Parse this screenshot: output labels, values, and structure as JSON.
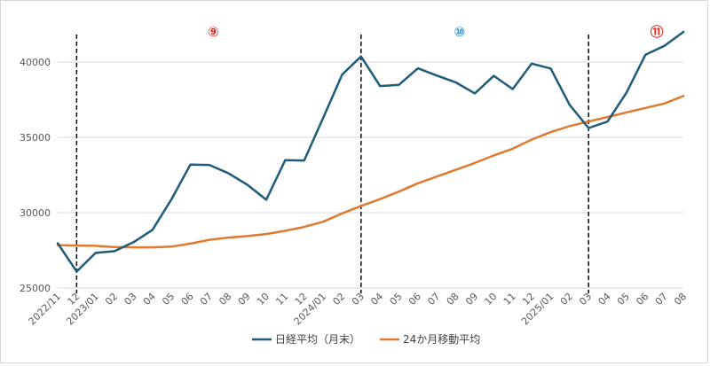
{
  "chart_data": {
    "type": "line",
    "title": "",
    "xlabel": "",
    "ylabel": "",
    "ylim": [
      25000,
      43000
    ],
    "yticks": [
      25000,
      30000,
      35000,
      40000
    ],
    "grid": "horizontal",
    "legend_position": "bottom",
    "categories": [
      "2022/11",
      "12",
      "2023/01",
      "02",
      "03",
      "04",
      "05",
      "06",
      "07",
      "08",
      "09",
      "10",
      "11",
      "12",
      "2024/01",
      "02",
      "03",
      "04",
      "05",
      "06",
      "07",
      "08",
      "09",
      "10",
      "11",
      "12",
      "2025/01",
      "02",
      "03",
      "04",
      "05",
      "06",
      "07",
      "08"
    ],
    "series": [
      {
        "name": "日経平均（月末）",
        "color": "#1f5c7a",
        "values": [
          27970,
          26095,
          27327,
          27446,
          28041,
          28856,
          30888,
          33189,
          33172,
          32619,
          31858,
          30859,
          33487,
          33464,
          36287,
          39166,
          40369,
          38406,
          38488,
          39583,
          39102,
          38648,
          37920,
          39081,
          38208,
          39895,
          39572,
          37156,
          35618,
          36045,
          37965,
          40487,
          41070,
          42000
        ]
      },
      {
        "name": "24か月移動平均",
        "color": "#e07a30",
        "values": [
          27850,
          27820,
          27800,
          27720,
          27700,
          27700,
          27750,
          27950,
          28200,
          28350,
          28450,
          28580,
          28800,
          29050,
          29400,
          29950,
          30450,
          30900,
          31400,
          31950,
          32400,
          32850,
          33300,
          33800,
          34250,
          34850,
          35350,
          35750,
          36050,
          36350,
          36650,
          36950,
          37250,
          37750
        ]
      }
    ],
    "vlines": [
      {
        "index": 1,
        "label": "⑨",
        "label_color": "#e0302a",
        "label_index": 8.2
      },
      {
        "index": 16,
        "label": "⑩",
        "label_color": "#2e8fd0",
        "label_index": 21.2
      },
      {
        "index": 28,
        "label": "⑪",
        "label_color": "#e0302a",
        "label_index": 31.6
      }
    ]
  }
}
